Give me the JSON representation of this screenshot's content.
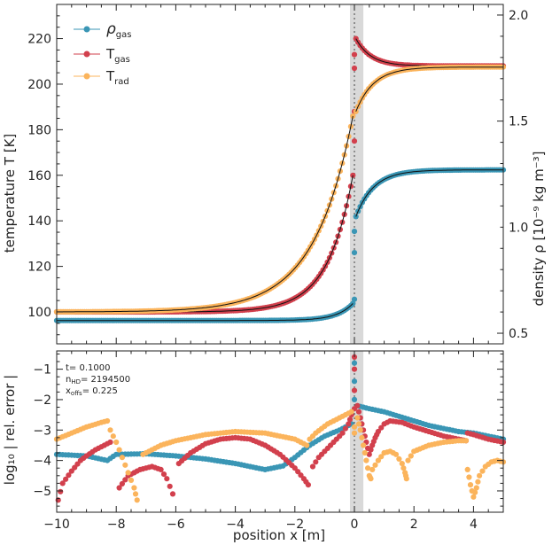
{
  "chart_data": [
    {
      "type": "scatter",
      "panel": "top",
      "xlabel": "",
      "ylabel": "temperature   T [K]",
      "ylabel_right": "density   ρ [10⁻⁹ kg m⁻³]",
      "xlim": [
        -10,
        5
      ],
      "ylim_left": [
        86,
        235
      ],
      "ylim_right": [
        0.45,
        2.05
      ],
      "yticks_left": [
        "100",
        "120",
        "140",
        "160",
        "180",
        "200",
        "220"
      ],
      "yticks_right": [
        "0.5",
        "1.0",
        "1.5",
        "2.0"
      ],
      "shaded_band_x": [
        -0.15,
        0.3
      ],
      "dotted_line_x": 0,
      "series": [
        {
          "name": "ρ",
          "name_sub": "gas",
          "color": "#3a96b5",
          "axis": "right",
          "pre_shock": {
            "start": -10,
            "end": -0.05,
            "far": 0.56,
            "front": 0.64,
            "scale": 0.55
          },
          "shock_points": [
            {
              "x": 0.0,
              "y": 0.98
            },
            {
              "x": 0.0,
              "y": 0.88
            },
            {
              "x": 0.0,
              "y": 0.66
            }
          ],
          "post_shock": {
            "start": 0.05,
            "end": 5,
            "front": 1.05,
            "far": 1.27,
            "scale": 0.6
          }
        },
        {
          "name": "T",
          "name_sub": "gas",
          "color": "#d2404d",
          "axis": "left",
          "pre_shock": {
            "start": -10,
            "end": -0.05,
            "far": 100,
            "front": 160,
            "scale": 0.85
          },
          "shock_points": [
            {
              "x": 0.0,
              "y": 175
            },
            {
              "x": 0.0,
              "y": 188
            },
            {
              "x": 0.0,
              "y": 207
            },
            {
              "x": 0.0,
              "y": 213
            }
          ],
          "post_shock": {
            "start": 0.05,
            "end": 5,
            "front": 220,
            "far": 208,
            "scale": 0.5
          }
        },
        {
          "name": "T",
          "name_sub": "rad",
          "color": "#fbb45c",
          "axis": "left",
          "pre_shock": {
            "start": -10,
            "end": -0.05,
            "far": 100,
            "front": 186,
            "scale": 1.3
          },
          "shock_points": [],
          "post_shock": {
            "start": 0.05,
            "end": 5,
            "front": 188,
            "far": 207.5,
            "scale": 0.6
          }
        }
      ]
    },
    {
      "type": "scatter",
      "panel": "bottom",
      "xlabel": "position   x [m]",
      "ylabel": "log₁₀ | rel. error |",
      "xlim": [
        -10,
        5
      ],
      "ylim": [
        -5.7,
        -0.4
      ],
      "xticks": [
        "−10",
        "−8",
        "−6",
        "−4",
        "−2",
        "0",
        "2",
        "4"
      ],
      "yticks": [
        "−5",
        "−4",
        "−3",
        "−2",
        "−1"
      ],
      "shaded_band_x": [
        -0.15,
        0.3
      ],
      "dotted_line_x": 0,
      "annotation": {
        "t": "t= 0.1000",
        "nhd_base": "n",
        "nhd_sub": "HD",
        "nhd_val": "= 2194500",
        "xoffs_base": "x",
        "xoffs_sub": "offs",
        "xoffs_val": "= 0.225"
      },
      "series": [
        {
          "name": "ρgas",
          "color": "#3a96b5",
          "segments": [
            {
              "x": [
                -10.0,
                -9.0,
                -8.3,
                -8.0,
                -7.0,
                -6.0,
                -5.0,
                -4.0,
                -3.0,
                -2.4,
                -2.0,
                -1.5,
                -1.0,
                -0.5,
                -0.1
              ],
              "y": [
                -3.8,
                -3.85,
                -4.0,
                -3.8,
                -3.78,
                -3.85,
                -3.95,
                -4.1,
                -4.3,
                -4.18,
                -3.9,
                -3.5,
                -3.2,
                -3.0,
                -2.8
              ]
            },
            {
              "x": [
                0.1,
                0.5,
                1.0,
                1.5,
                2.0,
                2.5,
                3.0,
                3.5,
                4.0,
                4.5,
                5.0
              ],
              "y": [
                -2.2,
                -2.3,
                -2.4,
                -2.55,
                -2.7,
                -2.85,
                -2.95,
                -3.05,
                -3.1,
                -3.2,
                -3.3
              ]
            }
          ],
          "extra_points": [
            {
              "x": 0.0,
              "y": -0.8
            },
            {
              "x": 0.0,
              "y": -1.4
            },
            {
              "x": 0.0,
              "y": -2.0
            }
          ]
        },
        {
          "name": "Tgas",
          "color": "#d2404d",
          "segments": [
            {
              "x": [
                -9.95,
                -9.8,
                -9.5,
                -9.2,
                -9.0,
                -8.7,
                -8.4,
                -8.2
              ],
              "y": [
                -5.3,
                -4.75,
                -4.35,
                -4.0,
                -3.85,
                -3.65,
                -3.5,
                -3.4
              ]
            },
            {
              "x": [
                -7.9,
                -7.6,
                -7.2,
                -6.8,
                -6.5,
                -6.3,
                -6.1
              ],
              "y": [
                -4.9,
                -4.5,
                -4.3,
                -4.2,
                -4.3,
                -4.6,
                -5.1
              ]
            },
            {
              "x": [
                -5.9,
                -5.5,
                -5.0,
                -4.5,
                -4.0,
                -3.5,
                -3.0,
                -2.5,
                -2.0,
                -1.7,
                -1.55
              ],
              "y": [
                -4.1,
                -3.75,
                -3.45,
                -3.3,
                -3.25,
                -3.3,
                -3.5,
                -3.8,
                -4.25,
                -4.6,
                -4.8
              ]
            },
            {
              "x": [
                -1.4,
                -1.2,
                -1.0,
                -0.8,
                -0.6,
                -0.4,
                -0.2,
                -0.1
              ],
              "y": [
                -4.2,
                -3.9,
                -3.7,
                -3.5,
                -3.3,
                -3.1,
                -2.8,
                -2.5
              ]
            },
            {
              "x": [
                0.1,
                0.2,
                0.3,
                0.4,
                0.5,
                0.6,
                0.7,
                0.8,
                1.0,
                1.2,
                1.6,
                2.0,
                2.5,
                3.0,
                3.5,
                3.75
              ],
              "y": [
                -2.2,
                -2.6,
                -3.0,
                -3.4,
                -3.8,
                -3.5,
                -3.25,
                -3.05,
                -2.8,
                -2.7,
                -2.75,
                -2.9,
                -3.05,
                -3.2,
                -3.3,
                -3.35
              ]
            },
            {
              "x": [
                3.8,
                4.0,
                4.5,
                5.0
              ],
              "y": [
                -3.1,
                -3.15,
                -3.3,
                -3.4
              ]
            }
          ],
          "extra_points": [
            {
              "x": 0.0,
              "y": -0.6
            },
            {
              "x": 0.0,
              "y": -1.0
            },
            {
              "x": 0.0,
              "y": -1.7
            },
            {
              "x": 0.0,
              "y": -2.3
            }
          ]
        },
        {
          "name": "Trad",
          "color": "#fbb45c",
          "segments": [
            {
              "x": [
                -10.0,
                -9.5,
                -9.0,
                -8.5,
                -8.3
              ],
              "y": [
                -3.3,
                -3.1,
                -2.9,
                -2.75,
                -2.7
              ]
            },
            {
              "x": [
                -8.2,
                -8.0,
                -7.8,
                -7.6,
                -7.4,
                -7.3
              ],
              "y": [
                -3.0,
                -3.4,
                -3.9,
                -4.4,
                -4.9,
                -5.3
              ]
            },
            {
              "x": [
                -7.1,
                -6.5,
                -6.0,
                -5.0,
                -4.0,
                -3.0,
                -2.0,
                -1.6
              ],
              "y": [
                -3.8,
                -3.5,
                -3.35,
                -3.15,
                -3.05,
                -3.1,
                -3.3,
                -3.5
              ]
            },
            {
              "x": [
                -1.5,
                -1.3,
                -1.1,
                -0.9,
                -0.7,
                -0.5,
                -0.3,
                -0.1
              ],
              "y": [
                -3.3,
                -3.1,
                -2.95,
                -2.8,
                -2.7,
                -2.6,
                -2.5,
                -2.4
              ]
            },
            {
              "x": [
                0.1,
                0.2,
                0.3,
                0.4,
                0.5,
                0.55
              ],
              "y": [
                -2.6,
                -3.0,
                -3.5,
                -4.0,
                -4.5,
                -4.6
              ]
            },
            {
              "x": [
                0.6,
                0.8,
                1.0,
                1.2,
                1.4,
                1.6,
                1.7,
                1.75
              ],
              "y": [
                -4.3,
                -4.0,
                -3.75,
                -3.7,
                -3.8,
                -4.1,
                -4.4,
                -4.6
              ]
            },
            {
              "x": [
                1.8,
                2.0,
                2.5,
                3.0,
                3.5,
                3.75
              ],
              "y": [
                -4.0,
                -3.7,
                -3.5,
                -3.4,
                -3.35,
                -3.35
              ]
            },
            {
              "x": [
                3.8,
                3.9,
                4.0,
                4.1,
                4.2,
                4.4,
                4.6,
                4.8,
                5.0
              ],
              "y": [
                -4.3,
                -4.8,
                -5.2,
                -4.9,
                -4.5,
                -4.2,
                -4.05,
                -4.0,
                -4.05
              ]
            }
          ],
          "extra_points": [
            {
              "x": 0.0,
              "y": -2.9
            },
            {
              "x": 0.0,
              "y": -3.1
            }
          ]
        }
      ]
    }
  ]
}
